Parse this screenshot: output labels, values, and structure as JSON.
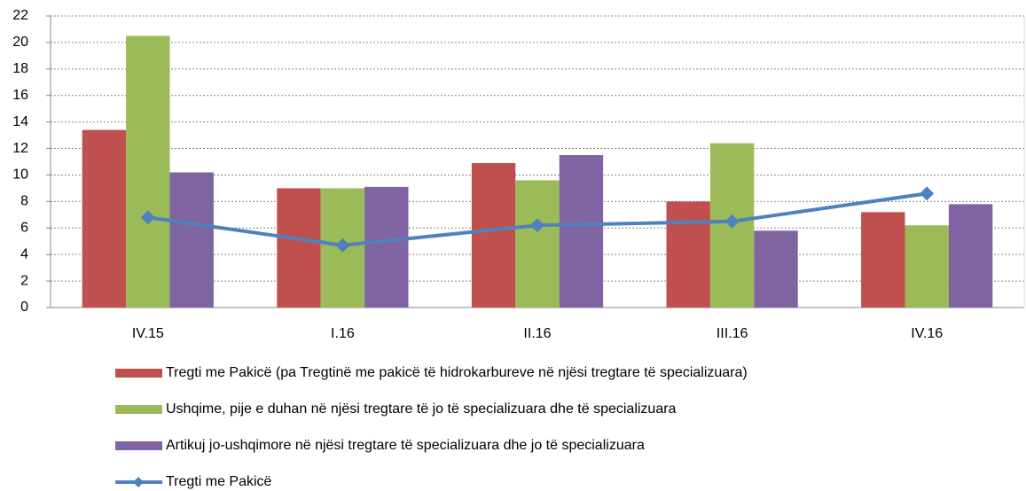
{
  "chart_data": {
    "type": "bar",
    "categories": [
      "IV.15",
      "I.16",
      "II.16",
      "III.16",
      "IV.16"
    ],
    "series": [
      {
        "name": "Tregti me Pakicë (pa Tregtinë me pakicë të hidrokarbureve në njësi tregtare të specializuara)",
        "color": "#c0504d",
        "values": [
          13.4,
          9.0,
          10.9,
          8.0,
          7.2
        ]
      },
      {
        "name": "Ushqime, pije e duhan në njësi tregtare të jo të specializuara dhe të specializuara",
        "color": "#9bbb59",
        "values": [
          20.5,
          9.0,
          9.6,
          12.4,
          6.2
        ]
      },
      {
        "name": "Artikuj jo-ushqimore në njësi tregtare të specializuara dhe jo të specializuara",
        "color": "#8064a2",
        "values": [
          10.2,
          9.1,
          11.5,
          5.8,
          7.8
        ]
      },
      {
        "name": "Tregti me Pakicë",
        "color": "#4f81bd",
        "type": "line",
        "values": [
          6.8,
          4.7,
          6.2,
          6.5,
          8.6
        ]
      }
    ],
    "ylim": [
      0,
      22
    ],
    "yticks": [
      0,
      2,
      4,
      6,
      8,
      10,
      12,
      14,
      16,
      18,
      20,
      22
    ],
    "grid": true
  }
}
